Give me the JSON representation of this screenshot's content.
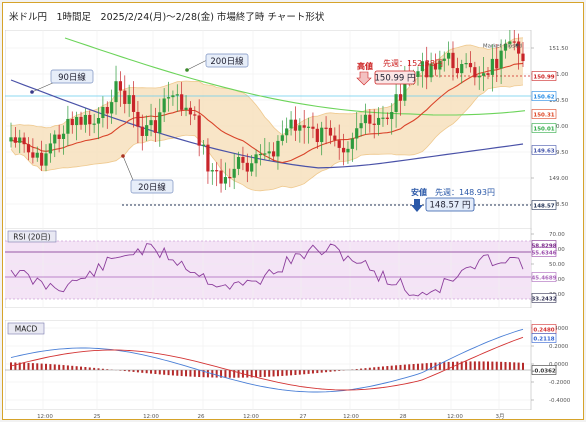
{
  "header": {
    "title": "米ドル円　1時間足　2025/2/24(月)～2/28(金) 市場終了時 チャート形状"
  },
  "price": {
    "market_status": "Market Closed",
    "symbol": "USDJPY",
    "labels": {
      "ma200": "200日線",
      "ma90": "90日線",
      "ma20": "20日線",
      "high_title": "高値",
      "high_prev": "先週：152.38円",
      "high_value": "150.99 円",
      "low_title": "安値",
      "low_prev": "先週：148.93円",
      "low_value": "148.57 円"
    },
    "axis_ticks": [
      "151.50",
      "151.00",
      "150.50",
      "150.00",
      "149.50",
      "149.00",
      "148.50"
    ],
    "axis_badges": [
      {
        "text": "150.99",
        "color": "#cc2222"
      },
      {
        "text": "150.62",
        "color": "#1e88e5"
      },
      {
        "text": "150.31",
        "color": "#dd4422"
      },
      {
        "text": "150.01",
        "color": "#2eaa44"
      },
      {
        "text": "149.63",
        "color": "#4455aa"
      },
      {
        "text": "148.57",
        "color": "#223355"
      }
    ]
  },
  "rsi": {
    "title": "RSI (20日)",
    "axis_ticks": [
      "70.00",
      "60.00",
      "50.00",
      "40.00",
      "30.00"
    ],
    "axis_badges": [
      {
        "text": "58.8298",
        "color": "#7b2a8a"
      },
      {
        "text": "55.6346",
        "color": "#9a4aaa"
      },
      {
        "text": "45.4689",
        "color": "#aa66bb"
      },
      {
        "text": "33.2432",
        "color": "#333355"
      }
    ]
  },
  "macd": {
    "title": "MACD",
    "axis_ticks": [
      "0.4000",
      "0.2000",
      "0.0000",
      "-0.2000",
      "-0.4000"
    ],
    "axis_badges": [
      {
        "text": "0.2480",
        "color": "#d43030"
      },
      {
        "text": "0.2118",
        "color": "#3060d0"
      },
      {
        "text": "-0.0362",
        "color": "#333333"
      }
    ]
  },
  "x_axis": [
    "12:00",
    "25",
    "12:00",
    "26",
    "12:00",
    "27",
    "12:00",
    "28",
    "12:00",
    "3月",
    "3"
  ],
  "colors": {
    "up": "#2e9b3e",
    "down": "#c8242a",
    "ma20": "#d9442a",
    "ma90": "#4a52a8",
    "ma200": "#6cd45a",
    "band": "#f6dfb9",
    "band_line": "#efc98e",
    "rsi_bg": "#f4e4f6",
    "rsi_line": "#8c3e9c",
    "macd_line": "#4a7fd6",
    "signal_line": "#d33434"
  }
}
